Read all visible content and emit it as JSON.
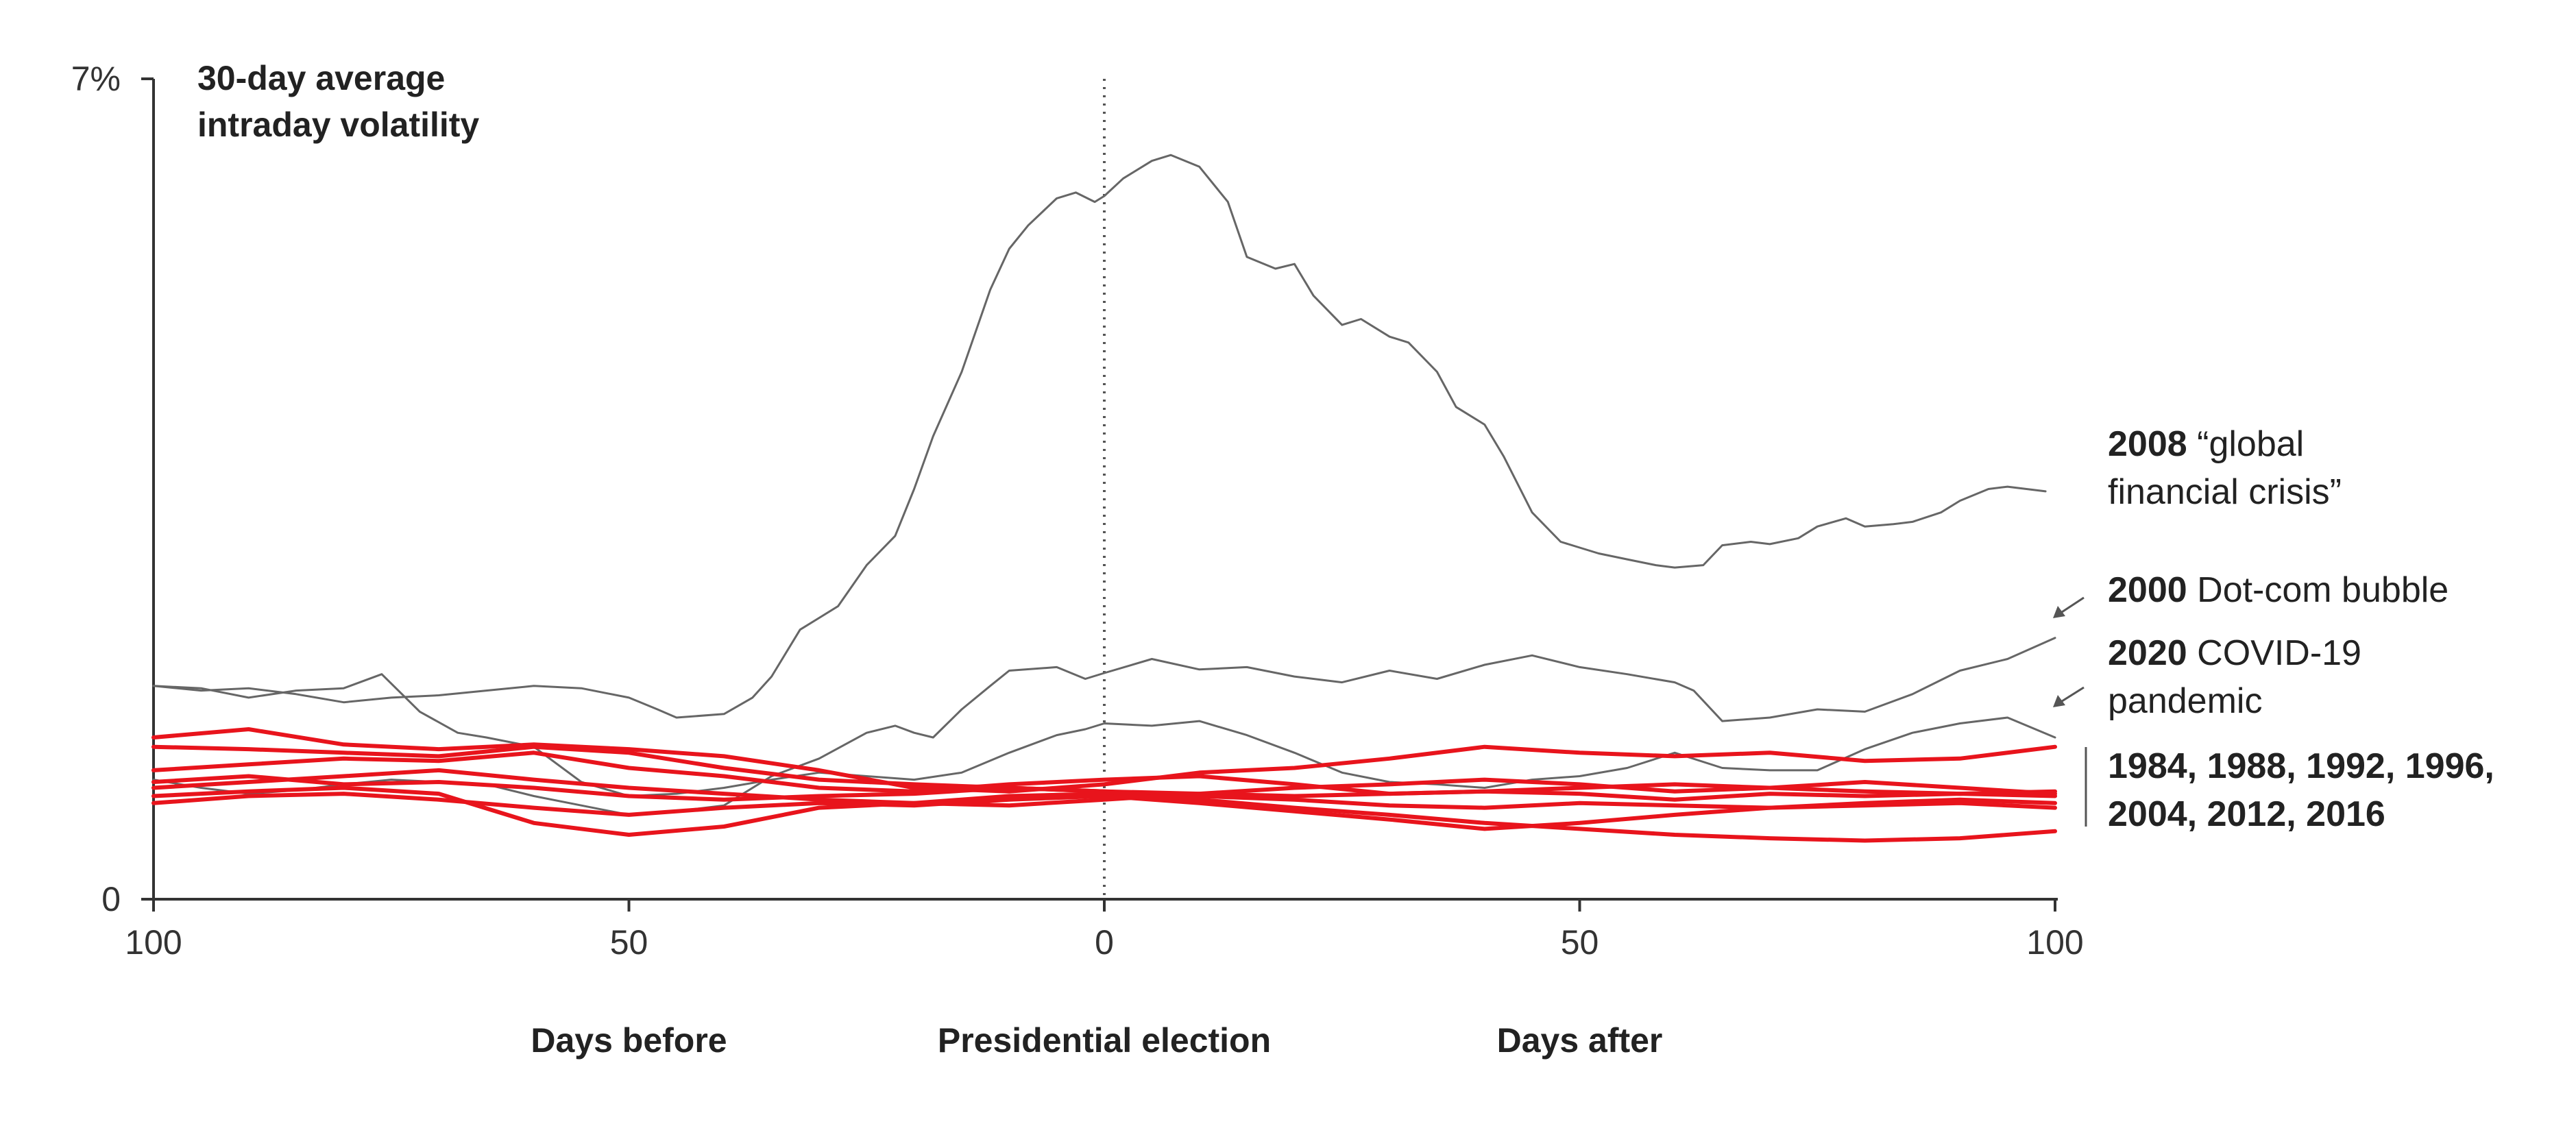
{
  "chart_data": {
    "type": "line",
    "ylabel_lines": [
      "30-day average",
      "intraday volatility"
    ],
    "y_ticks": [
      {
        "value": 0,
        "label": "0"
      },
      {
        "value": 7,
        "label": "7%"
      }
    ],
    "ylim": [
      0,
      7
    ],
    "xlim": [
      -100,
      100
    ],
    "x_ticks": [
      {
        "value": -100,
        "label": "100"
      },
      {
        "value": -50,
        "label": "50"
      },
      {
        "value": 0,
        "label": "0"
      },
      {
        "value": 50,
        "label": "50"
      },
      {
        "value": 100,
        "label": "100"
      }
    ],
    "x_captions": [
      {
        "value": -50,
        "label": "Days before"
      },
      {
        "value": 0,
        "label": "Presidential election"
      },
      {
        "value": 50,
        "label": "Days after"
      }
    ],
    "election_line_x": 0,
    "colors": {
      "highlight": "#e8141c",
      "context": "#666666",
      "axis": "#333333"
    },
    "annotations": {
      "y2008": {
        "bold": "2008",
        "text_line1": " “global",
        "text_line2": "financial crisis”"
      },
      "y2000": {
        "bold": "2000",
        "text": " Dot-com bubble"
      },
      "y2020": {
        "bold": "2020",
        "text_line1": " COVID-19",
        "text_line2": "pandemic"
      },
      "red_years": {
        "line1": "1984, 1988, 1992, 1996,",
        "line2": "2004, 2012, 2016"
      }
    },
    "series": [
      {
        "key": "2008",
        "group": "context",
        "x": [
          -100,
          -95,
          -90,
          -85,
          -80,
          -75,
          -70,
          -65,
          -60,
          -55,
          -50,
          -47,
          -45,
          -40,
          -37,
          -35,
          -32,
          -30,
          -28,
          -25,
          -22,
          -20,
          -18,
          -15,
          -12,
          -10,
          -8,
          -5,
          -3,
          -1,
          0,
          2,
          5,
          7,
          10,
          13,
          15,
          18,
          20,
          22,
          25,
          27,
          30,
          32,
          35,
          37,
          40,
          42,
          45,
          48,
          50,
          52,
          55,
          58,
          60,
          63,
          65,
          68,
          70,
          73,
          75,
          78,
          80,
          83,
          85,
          88,
          90,
          93,
          95,
          97,
          99
        ],
        "y": [
          1.82,
          1.78,
          1.8,
          1.75,
          1.68,
          1.72,
          1.74,
          1.78,
          1.82,
          1.8,
          1.72,
          1.62,
          1.55,
          1.58,
          1.72,
          1.9,
          2.3,
          2.4,
          2.5,
          2.85,
          3.1,
          3.5,
          3.95,
          4.5,
          5.2,
          5.55,
          5.75,
          5.98,
          6.03,
          5.95,
          6.0,
          6.15,
          6.3,
          6.35,
          6.25,
          5.95,
          5.48,
          5.38,
          5.42,
          5.15,
          4.9,
          4.95,
          4.8,
          4.75,
          4.5,
          4.2,
          4.05,
          3.78,
          3.3,
          3.05,
          3.0,
          2.95,
          2.9,
          2.85,
          2.83,
          2.85,
          3.02,
          3.05,
          3.03,
          3.08,
          3.18,
          3.25,
          3.18,
          3.2,
          3.22,
          3.3,
          3.4,
          3.5,
          3.52,
          3.5,
          3.48
        ]
      },
      {
        "key": "2000",
        "group": "context",
        "x": [
          -100,
          -95,
          -90,
          -85,
          -80,
          -75,
          -70,
          -65,
          -60,
          -55,
          -50,
          -45,
          -40,
          -35,
          -30,
          -25,
          -22,
          -20,
          -18,
          -15,
          -12,
          -10,
          -5,
          -2,
          0,
          5,
          10,
          15,
          20,
          25,
          30,
          35,
          40,
          45,
          50,
          55,
          60,
          62,
          65,
          70,
          75,
          80,
          85,
          90,
          95,
          100
        ],
        "y": [
          1.02,
          0.95,
          0.9,
          0.93,
          0.98,
          1.02,
          1.0,
          0.98,
          0.88,
          0.8,
          0.72,
          0.75,
          0.8,
          1.05,
          1.2,
          1.42,
          1.48,
          1.42,
          1.38,
          1.62,
          1.82,
          1.95,
          1.98,
          1.88,
          1.93,
          2.05,
          1.96,
          1.98,
          1.9,
          1.85,
          1.95,
          1.88,
          2.0,
          2.08,
          1.98,
          1.92,
          1.85,
          1.78,
          1.52,
          1.55,
          1.62,
          1.6,
          1.75,
          1.95,
          2.05,
          2.23
        ]
      },
      {
        "key": "2020",
        "group": "context",
        "x": [
          -100,
          -95,
          -90,
          -85,
          -80,
          -76,
          -72,
          -68,
          -65,
          -60,
          -55,
          -50,
          -45,
          -40,
          -35,
          -30,
          -25,
          -20,
          -15,
          -10,
          -5,
          -2,
          0,
          5,
          10,
          15,
          20,
          25,
          30,
          35,
          40,
          45,
          50,
          55,
          60,
          65,
          70,
          75,
          80,
          85,
          90,
          95,
          100
        ],
        "y": [
          1.82,
          1.8,
          1.72,
          1.78,
          1.8,
          1.92,
          1.6,
          1.42,
          1.38,
          1.3,
          1.0,
          0.88,
          0.9,
          0.95,
          1.02,
          1.08,
          1.05,
          1.02,
          1.08,
          1.25,
          1.4,
          1.45,
          1.5,
          1.48,
          1.52,
          1.4,
          1.25,
          1.08,
          1.0,
          0.98,
          0.95,
          1.02,
          1.05,
          1.12,
          1.25,
          1.12,
          1.1,
          1.1,
          1.28,
          1.42,
          1.5,
          1.55,
          1.38
        ]
      },
      {
        "key": "red-a",
        "group": "highlight",
        "x": [
          -100,
          -90,
          -80,
          -70,
          -60,
          -50,
          -40,
          -30,
          -20,
          -10,
          0,
          10,
          20,
          30,
          40,
          50,
          60,
          70,
          80,
          90,
          100
        ],
        "y": [
          1.38,
          1.45,
          1.32,
          1.28,
          1.32,
          1.28,
          1.22,
          1.1,
          0.95,
          0.92,
          0.98,
          1.08,
          1.12,
          1.2,
          1.3,
          1.25,
          1.22,
          1.25,
          1.18,
          1.2,
          1.3
        ]
      },
      {
        "key": "red-b",
        "group": "highlight",
        "x": [
          -100,
          -90,
          -80,
          -70,
          -60,
          -50,
          -40,
          -30,
          -20,
          -10,
          0,
          10,
          20,
          30,
          40,
          50,
          60,
          70,
          80,
          90,
          100
        ],
        "y": [
          1.3,
          1.28,
          1.25,
          1.22,
          1.3,
          1.25,
          1.12,
          1.02,
          0.98,
          0.95,
          0.92,
          0.9,
          0.88,
          0.9,
          0.92,
          0.9,
          0.85,
          0.9,
          0.88,
          0.9,
          0.88
        ]
      },
      {
        "key": "red-c",
        "group": "highlight",
        "x": [
          -100,
          -90,
          -80,
          -70,
          -60,
          -50,
          -40,
          -30,
          -20,
          -10,
          0,
          10,
          20,
          30,
          40,
          50,
          60,
          70,
          80,
          90,
          100
        ],
        "y": [
          1.1,
          1.15,
          1.2,
          1.18,
          1.25,
          1.12,
          1.05,
          0.95,
          0.92,
          0.98,
          1.02,
          1.05,
          0.98,
          0.9,
          0.92,
          0.95,
          0.98,
          0.95,
          0.92,
          0.9,
          0.92
        ]
      },
      {
        "key": "red-d",
        "group": "highlight",
        "x": [
          -100,
          -90,
          -80,
          -70,
          -60,
          -50,
          -40,
          -30,
          -20,
          -10,
          0,
          10,
          20,
          30,
          40,
          50,
          60,
          70,
          80,
          90,
          100
        ],
        "y": [
          1.0,
          1.05,
          0.98,
          1.0,
          0.95,
          0.88,
          0.85,
          0.88,
          0.9,
          0.95,
          0.92,
          0.88,
          0.85,
          0.8,
          0.78,
          0.82,
          0.8,
          0.78,
          0.8,
          0.82,
          0.78
        ]
      },
      {
        "key": "red-e",
        "group": "highlight",
        "x": [
          -100,
          -90,
          -80,
          -70,
          -60,
          -50,
          -40,
          -30,
          -20,
          -10,
          0,
          10,
          20,
          30,
          40,
          50,
          60,
          70,
          80,
          90,
          100
        ],
        "y": [
          0.88,
          0.92,
          0.95,
          0.9,
          0.65,
          0.55,
          0.62,
          0.78,
          0.82,
          0.88,
          0.9,
          0.85,
          0.78,
          0.72,
          0.65,
          0.6,
          0.55,
          0.52,
          0.5,
          0.52,
          0.58
        ]
      },
      {
        "key": "red-f",
        "group": "highlight",
        "x": [
          -100,
          -90,
          -80,
          -70,
          -60,
          -50,
          -40,
          -30,
          -20,
          -10,
          0,
          10,
          20,
          30,
          40,
          50,
          60,
          70,
          80,
          90,
          100
        ],
        "y": [
          0.82,
          0.88,
          0.9,
          0.85,
          0.78,
          0.72,
          0.78,
          0.82,
          0.8,
          0.85,
          0.88,
          0.82,
          0.75,
          0.68,
          0.6,
          0.65,
          0.72,
          0.78,
          0.82,
          0.85,
          0.82
        ]
      },
      {
        "key": "red-g",
        "group": "highlight",
        "x": [
          -100,
          -90,
          -80,
          -70,
          -60,
          -50,
          -40,
          -30,
          -20,
          -10,
          0,
          10,
          20,
          30,
          40,
          50,
          60,
          70,
          80,
          90,
          100
        ],
        "y": [
          0.95,
          1.0,
          1.05,
          1.1,
          1.02,
          0.95,
          0.9,
          0.85,
          0.82,
          0.8,
          0.85,
          0.9,
          0.95,
          0.98,
          1.02,
          0.98,
          0.92,
          0.95,
          1.0,
          0.95,
          0.9
        ]
      }
    ]
  }
}
